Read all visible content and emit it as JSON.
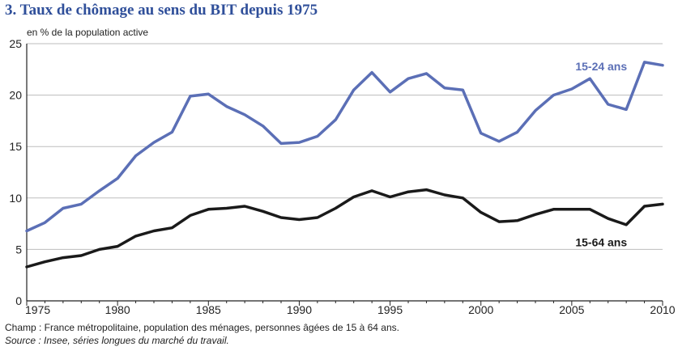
{
  "title": "3. Taux de chômage au sens du BIT depuis 1975",
  "unit_label": "en % de la population active",
  "notes": {
    "champ": "Champ : France métropolitaine, population des ménages, personnes âgées de 15 à 64 ans.",
    "source": "Source : Insee, séries longues du marché du travail."
  },
  "colors": {
    "youth": "#5b6fb6",
    "all": "#1a1a1a",
    "title": "#2f4f9a",
    "grid": "#bdbdbd"
  },
  "chart_data": {
    "type": "line",
    "title": "3. Taux de chômage au sens du BIT depuis 1975",
    "ylabel": "en % de la population active",
    "xlim": [
      1975,
      2010
    ],
    "ylim": [
      0,
      25
    ],
    "grid": true,
    "x_ticks": [
      "1975",
      "1980",
      "1985",
      "1990",
      "1995",
      "2000",
      "2005",
      "2010"
    ],
    "y_ticks": [
      "0",
      "5",
      "10",
      "15",
      "20",
      "25"
    ],
    "x": [
      1975,
      1976,
      1977,
      1978,
      1979,
      1980,
      1981,
      1982,
      1983,
      1984,
      1985,
      1986,
      1987,
      1988,
      1989,
      1990,
      1991,
      1992,
      1993,
      1994,
      1995,
      1996,
      1997,
      1998,
      1999,
      2000,
      2001,
      2002,
      2003,
      2004,
      2005,
      2006,
      2007,
      2008,
      2009,
      2010
    ],
    "series": [
      {
        "name": "15-24 ans",
        "color": "#5b6fb6",
        "values": [
          6.8,
          7.6,
          9.0,
          9.4,
          10.7,
          11.9,
          14.1,
          15.4,
          16.4,
          19.9,
          20.1,
          18.9,
          18.1,
          17.0,
          15.3,
          15.4,
          16.0,
          17.6,
          20.5,
          22.2,
          20.3,
          21.6,
          22.1,
          20.7,
          20.5,
          16.3,
          15.5,
          16.4,
          18.5,
          20.0,
          20.6,
          21.6,
          19.1,
          18.6,
          23.2,
          22.9
        ]
      },
      {
        "name": "15-64 ans",
        "color": "#1a1a1a",
        "values": [
          3.3,
          3.8,
          4.2,
          4.4,
          5.0,
          5.3,
          6.3,
          6.8,
          7.1,
          8.3,
          8.9,
          9.0,
          9.2,
          8.7,
          8.1,
          7.9,
          8.1,
          9.0,
          10.1,
          10.7,
          10.1,
          10.6,
          10.8,
          10.3,
          10.0,
          8.6,
          7.7,
          7.8,
          8.4,
          8.9,
          8.9,
          8.9,
          8.0,
          7.4,
          9.2,
          9.4
        ]
      }
    ]
  }
}
